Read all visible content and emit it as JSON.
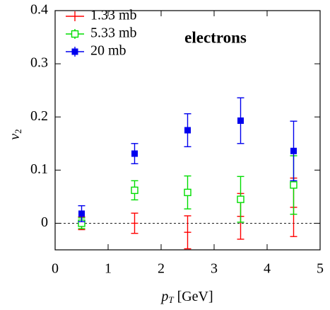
{
  "chart_data": {
    "type": "scatter",
    "annotation": "electrons",
    "xlabel": [
      "p",
      "T",
      " [GeV]"
    ],
    "ylabel": [
      "v",
      "2"
    ],
    "xlim": [
      0,
      5
    ],
    "xticks": [
      0,
      1,
      2,
      3,
      4,
      5
    ],
    "ylim": [
      -0.05,
      0.4
    ],
    "yticks": [
      0,
      0.1,
      0.2,
      0.3,
      0.4
    ],
    "reference_line": 0,
    "legend": "upper left",
    "x": [
      0.5,
      1.5,
      2.5,
      3.5,
      4.5
    ],
    "series": [
      {
        "name": "1.33 mb",
        "color": "#ff0000",
        "marker": "none",
        "values": [
          0.0,
          0.0,
          -0.017,
          0.013,
          0.03
        ],
        "errors": [
          0.012,
          0.019,
          0.031,
          0.043,
          0.055
        ]
      },
      {
        "name": "5.33 mb",
        "color": "#00dd00",
        "marker": "open-square",
        "values": [
          0.0,
          0.062,
          0.058,
          0.045,
          0.072
        ],
        "errors": [
          0.01,
          0.018,
          0.031,
          0.043,
          0.055
        ]
      },
      {
        "name": "20 mb",
        "color": "#0000ee",
        "marker": "filled-square",
        "values": [
          0.018,
          0.131,
          0.175,
          0.193,
          0.136
        ],
        "errors": [
          0.015,
          0.019,
          0.031,
          0.043,
          0.056
        ]
      }
    ]
  }
}
